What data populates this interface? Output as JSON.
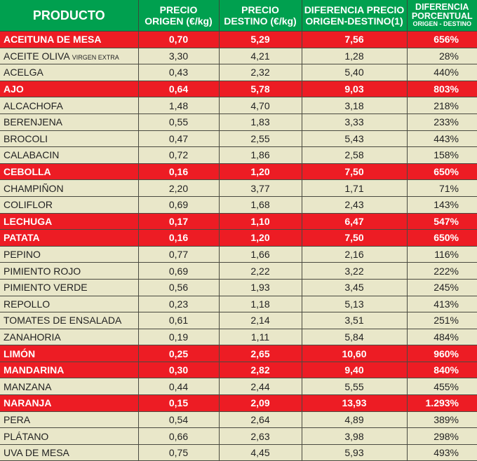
{
  "colors": {
    "header": "#00a04f",
    "highlight": "#ed1c24",
    "row": "#e9e7c9"
  },
  "headers": {
    "producto": "PRODUCTO",
    "origen_l1": "PRECIO",
    "origen_l2": "ORIGEN (€/kg)",
    "destino_l1": "PRECIO",
    "destino_l2": "DESTINO (€/kg)",
    "dif_l1": "DIFERENCIA PRECIO",
    "dif_l2": "ORIGEN-DESTINO(1)",
    "pct_l1": "DIFERENCIA",
    "pct_l2": "PORCENTUAL",
    "pct_l3": "ORIGEN - DESTINO"
  },
  "rows": [
    {
      "name": "ACEITUNA  DE MESA",
      "suffix": "",
      "origen": "0,70",
      "destino": "5,29",
      "dif": "7,56",
      "pct": "656%",
      "highlight": true
    },
    {
      "name": "ACEITE OLIVA ",
      "suffix": "VIRGEN EXTRA",
      "origen": "3,30",
      "destino": "4,21",
      "dif": "1,28",
      "pct": "28%",
      "highlight": false
    },
    {
      "name": "ACELGA",
      "suffix": "",
      "origen": "0,43",
      "destino": "2,32",
      "dif": "5,40",
      "pct": "440%",
      "highlight": false
    },
    {
      "name": "AJO",
      "suffix": "",
      "origen": "0,64",
      "destino": "5,78",
      "dif": "9,03",
      "pct": "803%",
      "highlight": true
    },
    {
      "name": "ALCACHOFA",
      "suffix": "",
      "origen": "1,48",
      "destino": "4,70",
      "dif": "3,18",
      "pct": "218%",
      "highlight": false
    },
    {
      "name": "BERENJENA",
      "suffix": "",
      "origen": "0,55",
      "destino": "1,83",
      "dif": "3,33",
      "pct": "233%",
      "highlight": false
    },
    {
      "name": "BROCOLI",
      "suffix": "",
      "origen": "0,47",
      "destino": "2,55",
      "dif": "5,43",
      "pct": "443%",
      "highlight": false
    },
    {
      "name": "CALABACIN",
      "suffix": "",
      "origen": "0,72",
      "destino": "1,86",
      "dif": "2,58",
      "pct": "158%",
      "highlight": false
    },
    {
      "name": "CEBOLLA",
      "suffix": "",
      "origen": "0,16",
      "destino": "1,20",
      "dif": "7,50",
      "pct": "650%",
      "highlight": true
    },
    {
      "name": "CHAMPIÑON",
      "suffix": "",
      "origen": "2,20",
      "destino": "3,77",
      "dif": "1,71",
      "pct": "71%",
      "highlight": false
    },
    {
      "name": "COLIFLOR",
      "suffix": "",
      "origen": "0,69",
      "destino": "1,68",
      "dif": "2,43",
      "pct": "143%",
      "highlight": false
    },
    {
      "name": "LECHUGA",
      "suffix": "",
      "origen": "0,17",
      "destino": "1,10",
      "dif": "6,47",
      "pct": "547%",
      "highlight": true
    },
    {
      "name": "PATATA",
      "suffix": "",
      "origen": "0,16",
      "destino": "1,20",
      "dif": "7,50",
      "pct": "650%",
      "highlight": true
    },
    {
      "name": "PEPINO",
      "suffix": "",
      "origen": "0,77",
      "destino": "1,66",
      "dif": "2,16",
      "pct": "116%",
      "highlight": false
    },
    {
      "name": "PIMIENTO ROJO",
      "suffix": "",
      "origen": "0,69",
      "destino": "2,22",
      "dif": "3,22",
      "pct": "222%",
      "highlight": false
    },
    {
      "name": "PIMIENTO VERDE",
      "suffix": "",
      "origen": "0,56",
      "destino": "1,93",
      "dif": "3,45",
      "pct": "245%",
      "highlight": false
    },
    {
      "name": "REPOLLO",
      "suffix": "",
      "origen": "0,23",
      "destino": "1,18",
      "dif": "5,13",
      "pct": "413%",
      "highlight": false
    },
    {
      "name": "TOMATES DE ENSALADA",
      "suffix": "",
      "origen": "0,61",
      "destino": "2,14",
      "dif": "3,51",
      "pct": "251%",
      "highlight": false
    },
    {
      "name": "ZANAHORIA",
      "suffix": "",
      "origen": "0,19",
      "destino": "1,11",
      "dif": "5,84",
      "pct": "484%",
      "highlight": false
    },
    {
      "name": "LIMÓN",
      "suffix": "",
      "origen": "0,25",
      "destino": "2,65",
      "dif": "10,60",
      "pct": "960%",
      "highlight": true
    },
    {
      "name": "MANDARINA",
      "suffix": "",
      "origen": "0,30",
      "destino": "2,82",
      "dif": "9,40",
      "pct": "840%",
      "highlight": true
    },
    {
      "name": "MANZANA",
      "suffix": "",
      "origen": "0,44",
      "destino": "2,44",
      "dif": "5,55",
      "pct": "455%",
      "highlight": false
    },
    {
      "name": "NARANJA",
      "suffix": "",
      "origen": "0,15",
      "destino": "2,09",
      "dif": "13,93",
      "pct": "1.293%",
      "highlight": true
    },
    {
      "name": "PERA",
      "suffix": "",
      "origen": "0,54",
      "destino": "2,64",
      "dif": "4,89",
      "pct": "389%",
      "highlight": false
    },
    {
      "name": "PLÁTANO",
      "suffix": "",
      "origen": "0,66",
      "destino": "2,63",
      "dif": "3,98",
      "pct": "298%",
      "highlight": false
    },
    {
      "name": "UVA DE MESA",
      "suffix": "",
      "origen": "0,75",
      "destino": "4,45",
      "dif": "5,93",
      "pct": "493%",
      "highlight": false
    }
  ]
}
